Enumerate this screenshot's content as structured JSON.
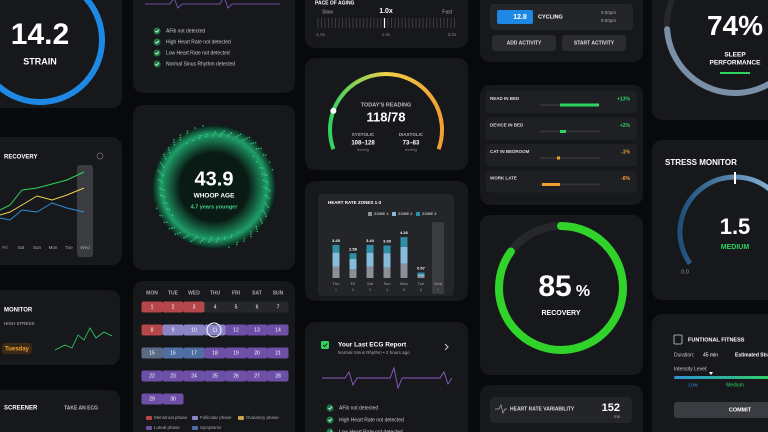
{
  "strain": {
    "value": "14.2",
    "label": "STRAIN"
  },
  "recovery_trend": {
    "title": "RECOVERY",
    "days": [
      "Fri",
      "Sat",
      "Sun",
      "Mon",
      "Tue",
      "Wed"
    ]
  },
  "stress_small": {
    "title": "MONITOR",
    "level": "HIGH STRESS",
    "day": "Tuesday"
  },
  "screener": {
    "title": "SCREENER",
    "action": "TAKE AN ECG"
  },
  "ecg_checks": [
    "AFib not detected",
    "High Heart Rate not detected",
    "Low Heart Rate not detected",
    "Normal Sinus Rhythm detected"
  ],
  "whoop_age": {
    "value": "43.9",
    "label": "WHOOP AGE",
    "note": "4.7 years younger"
  },
  "calendar": {
    "days": [
      "MON",
      "TUE",
      "WED",
      "THU",
      "FRI",
      "SAT",
      "SUN"
    ],
    "dates": [
      1,
      2,
      3,
      4,
      5,
      6,
      7,
      8,
      9,
      10,
      11,
      12,
      13,
      14,
      15,
      16,
      17,
      18,
      19,
      20,
      21,
      22,
      23,
      24,
      25,
      26,
      27,
      28,
      29,
      30
    ],
    "date_colors": [
      "#b5474a",
      "#b5474a",
      "#b5474a",
      "#26272b",
      "#26272b",
      "#26272b",
      "#26272b",
      "#b5474a",
      "#8b84c6",
      "#8b84c6",
      "#8b84c6",
      "#6e4fa8",
      "#6e4fa8",
      "#6e4fa8",
      "#5c6a85",
      "#4f6ea3",
      "#4f6ea3",
      "#6e4fa8",
      "#6e4fa8",
      "#6e4fa8",
      "#6e4fa8",
      "#6e4fa8",
      "#6e4fa8",
      "#6e4fa8",
      "#6e4fa8",
      "#6e4fa8",
      "#6e4fa8",
      "#6e4fa8",
      "#6e4fa8",
      "#6e4fa8"
    ],
    "legend": [
      {
        "name": "Menstrual phase",
        "color": "#b5474a"
      },
      {
        "name": "Follicular phase",
        "color": "#8b84c6"
      },
      {
        "name": "Ovulatory phase",
        "color": "#c8a24a"
      },
      {
        "name": "Luteal phase",
        "color": "#6e4fa8"
      },
      {
        "name": "Symptoms",
        "color": "#4f6ea3"
      }
    ]
  },
  "pace": {
    "title": "PACE OF AGING",
    "value": "1.0x",
    "slow": "Slow",
    "fast": "Fast",
    "scale": [
      "-1.0x",
      "1.0x",
      "3.0x"
    ]
  },
  "blood_pressure": {
    "title": "TODAY'S READING",
    "value": "118/78",
    "systolic_label": "SYSTOLIC",
    "systolic": "108–128",
    "diastolic_label": "DIASTOLIC",
    "diastolic": "73–83",
    "unit": "mmHg"
  },
  "zones": {
    "type": "bar",
    "title": "HEART RATE ZONES 1-3",
    "categories": [
      "Thu",
      "Fri",
      "Sat",
      "Sun",
      "Mon",
      "Tue",
      "Wed"
    ],
    "dates": [
      "1",
      "2",
      "3",
      "4",
      "5",
      "6",
      "7"
    ],
    "series": [
      {
        "name": "ZONE 1",
        "color": "#8a8f98",
        "values": [
          1.2,
          0.9,
          1.2,
          1.1,
          1.5,
          0.2,
          null
        ]
      },
      {
        "name": "ZONE 2",
        "color": "#86bcd9",
        "values": [
          1.45,
          1.08,
          1.44,
          1.49,
          1.76,
          0.17,
          null
        ]
      },
      {
        "name": "ZONE 3",
        "color": "#2e8fa6",
        "values": [
          0.8,
          0.6,
          0.8,
          0.8,
          1.0,
          0.2,
          null
        ]
      }
    ],
    "value_labels": [
      "3.45",
      "2.58",
      "3.44",
      "3.39",
      "4.26",
      "0.57",
      null
    ],
    "ylim": [
      0,
      5
    ]
  },
  "ecg_report": {
    "title": "Your Last ECG Report",
    "subtitle": "Normal Sinus Rhythm • 2 hours ago",
    "checks": [
      "AFib not detected",
      "High Heart Rate not detected",
      "Low Heart Rate not detected"
    ]
  },
  "activity": {
    "strain": "12.8",
    "name": "CYCLING",
    "start": "6:00pm",
    "end": "8:00pm",
    "buttons": [
      "ADD ACTIVITY",
      "START ACTIVITY"
    ]
  },
  "behaviors": {
    "names": [
      "READ IN BED",
      "DEVICE IN BED",
      "CAT IN BEDROOM",
      "WORK LATE"
    ],
    "values": [
      13,
      2,
      -1,
      -6
    ],
    "value_labels": [
      "+13%",
      "+2%",
      "-1%",
      "-6%"
    ],
    "positive_color": "#2fd35f",
    "negative_color": "#f0a030"
  },
  "recovery": {
    "value": 85,
    "unit": "%",
    "label": "RECOVERY",
    "color": "#2fd329"
  },
  "hrv": {
    "title": "HEART RATE VARIABILITY",
    "value": "152",
    "unit": "ms"
  },
  "sleep": {
    "value": 74,
    "unit": "%",
    "label_lines": [
      "SLEEP",
      "PERFORMANCE"
    ],
    "color": "#7a8fa8"
  },
  "stress": {
    "title": "STRESS MONITOR",
    "value": "1.5",
    "level": "MEDIUM",
    "min": "0.0"
  },
  "fitness": {
    "title": "FUNTIONAL FITNESS",
    "duration_label": "Duration:",
    "duration": "45 min",
    "estimated": "Estimated Strain",
    "intensity": "Intensity Level:",
    "low": "Low",
    "medium": "Medium",
    "button": "COMMIT"
  }
}
